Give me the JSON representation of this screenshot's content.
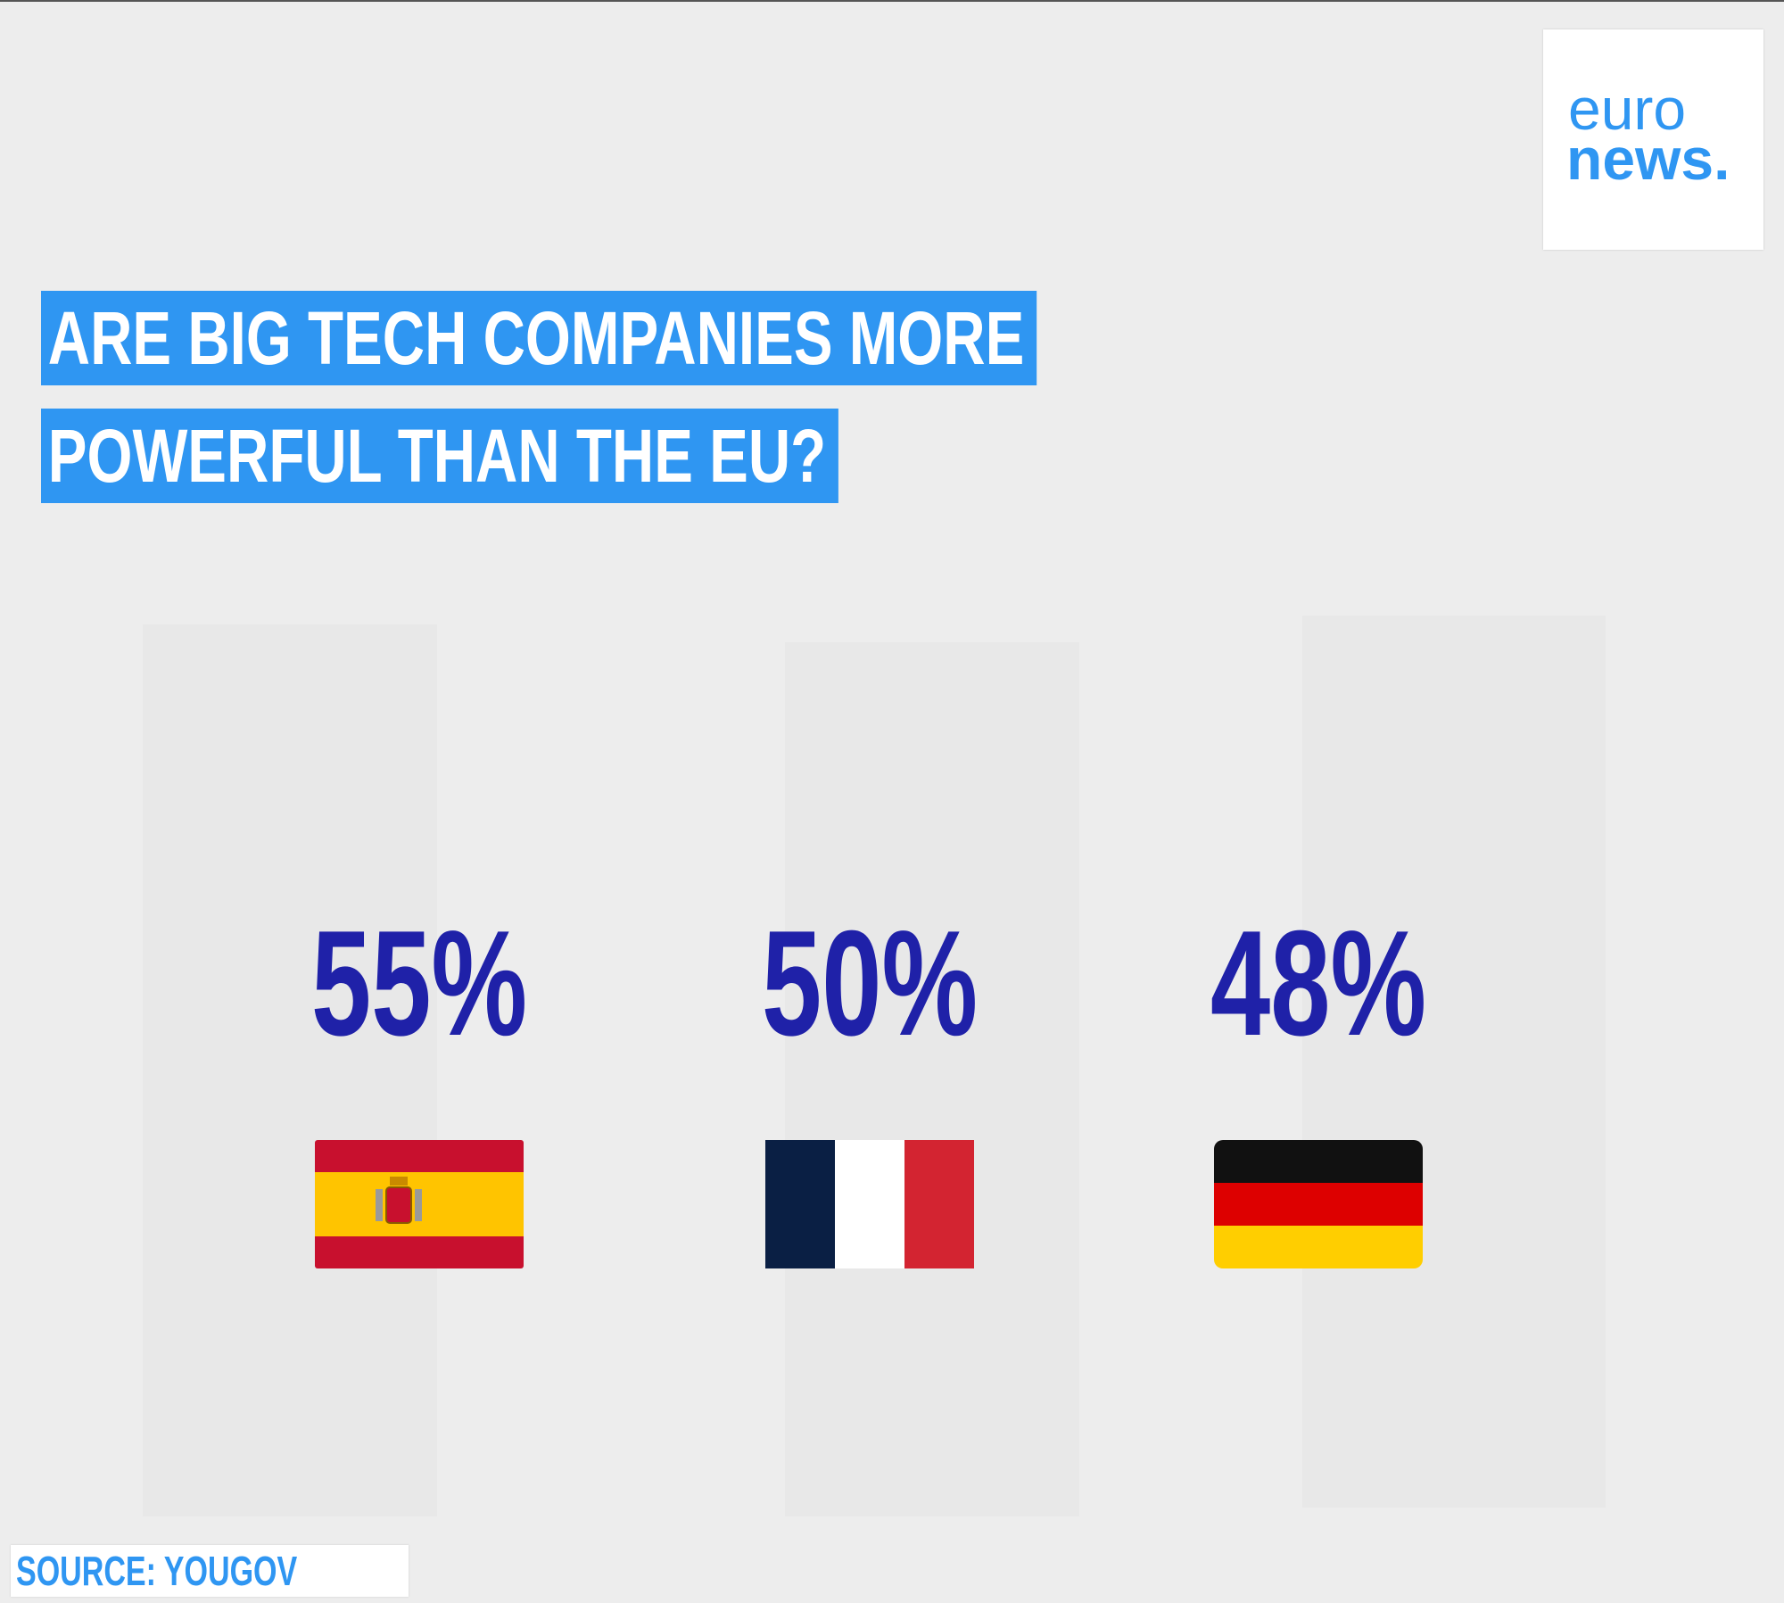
{
  "brand": {
    "logo_line1": "euro",
    "logo_line2": "news.",
    "logo_color": "#2f96f2"
  },
  "title": {
    "line1": "ARE BIG TECH COMPANIES MORE",
    "line2": "POWERFUL THAN THE EU?",
    "highlight_color": "#2f96f2"
  },
  "chart_data": {
    "type": "table",
    "title": "ARE BIG TECH COMPANIES MORE POWERFUL THAN THE EU?",
    "categories": [
      "Spain",
      "France",
      "Germany"
    ],
    "values": [
      55,
      50,
      48
    ],
    "value_labels": [
      "55%",
      "50%",
      "48%"
    ],
    "unit": "%",
    "category_markers": [
      "spain-flag",
      "france-flag",
      "germany-flag"
    ],
    "value_color": "#1f21a8"
  },
  "source": {
    "label": "SOURCE: YOUGOV"
  }
}
